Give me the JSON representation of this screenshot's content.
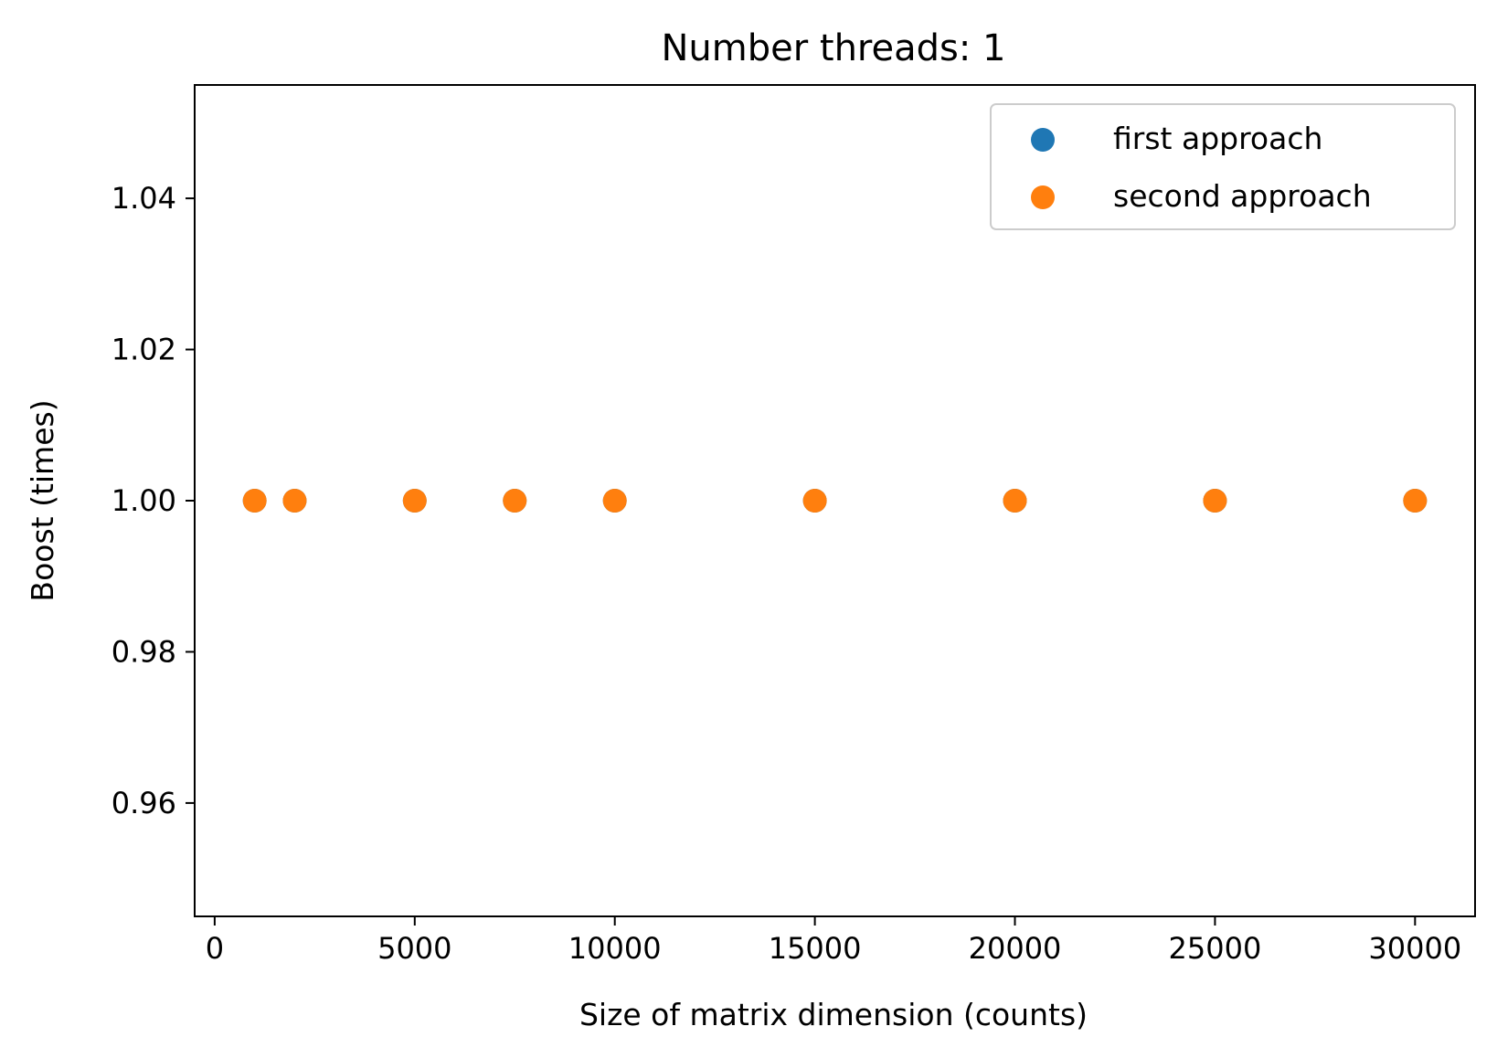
{
  "chart_data": {
    "type": "scatter",
    "title": "Number threads: 1",
    "xlabel": "Size of matrix dimension (counts)",
    "ylabel": "Boost (times)",
    "xlim": [
      -500,
      31500
    ],
    "ylim": [
      0.945,
      1.055
    ],
    "xticks": [
      0,
      5000,
      10000,
      15000,
      20000,
      25000,
      30000
    ],
    "yticks": [
      0.96,
      0.98,
      1.0,
      1.02,
      1.04
    ],
    "ytick_labels": [
      "0.96",
      "0.98",
      "1.00",
      "1.02",
      "1.04"
    ],
    "grid": false,
    "legend_position": "top-right",
    "series": [
      {
        "name": "first approach",
        "color": "#1f77b4",
        "x": [
          1000,
          2000,
          5000,
          7500,
          10000,
          15000,
          20000,
          25000,
          30000
        ],
        "y": [
          1.0,
          1.0,
          1.0,
          1.0,
          1.0,
          1.0,
          1.0,
          1.0,
          1.0
        ]
      },
      {
        "name": "second approach",
        "color": "#ff7f0e",
        "x": [
          1000,
          2000,
          5000,
          7500,
          10000,
          15000,
          20000,
          25000,
          30000
        ],
        "y": [
          1.0,
          1.0,
          1.0,
          1.0,
          1.0,
          1.0,
          1.0,
          1.0,
          1.0
        ]
      }
    ]
  }
}
